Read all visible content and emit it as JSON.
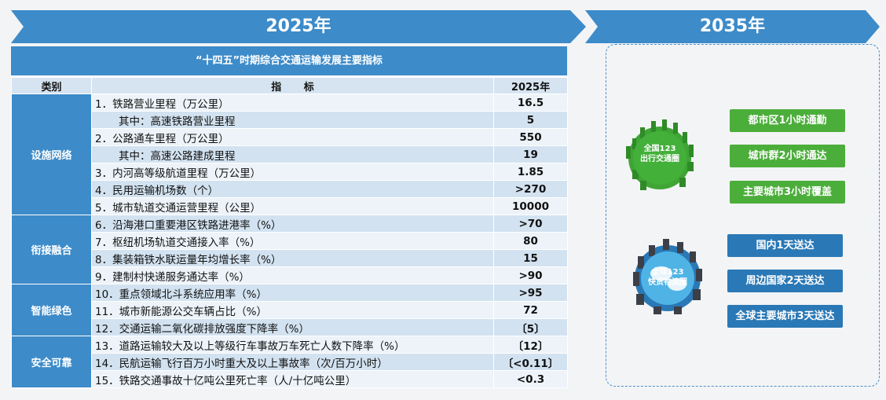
{
  "banners": {
    "left": "2025年",
    "right": "2035年"
  },
  "table": {
    "title": "“十四五”时期综合交通运输发展主要指标",
    "headers": {
      "category": "类别",
      "indicator": "指 标",
      "year": "2025年"
    },
    "categories": [
      "设施网络",
      "衔接融合",
      "智能绿色",
      "安全可靠"
    ],
    "rows": [
      {
        "indicator": "1．铁路营业里程（万公里）",
        "value": "16.5"
      },
      {
        "indicator": "其中：高速铁路营业里程",
        "value": "5"
      },
      {
        "indicator": "2．公路通车里程（万公里）",
        "value": "550"
      },
      {
        "indicator": "其中：高速公路建成里程",
        "value": "19"
      },
      {
        "indicator": "3．内河高等级航道里程（万公里）",
        "value": "1.85"
      },
      {
        "indicator": "4．民用运输机场数（个）",
        "value": ">270"
      },
      {
        "indicator": "5．城市轨道交通运营里程（公里）",
        "value": "10000"
      },
      {
        "indicator": "6．沿海港口重要港区铁路进港率（%）",
        "value": ">70"
      },
      {
        "indicator": "7．枢纽机场轨道交通接入率（%）",
        "value": "80"
      },
      {
        "indicator": "8．集装箱铁水联运量年均增长率（%）",
        "value": "15"
      },
      {
        "indicator": "9．建制村快递服务通达率（%）",
        "value": ">90"
      },
      {
        "indicator": "10．重点领域北斗系统应用率（%）",
        "value": ">95"
      },
      {
        "indicator": "11．城市新能源公交车辆占比（%）",
        "value": "72"
      },
      {
        "indicator": "12．交通运输二氧化碳排放强度下降率（%）",
        "value": "〔5〕"
      },
      {
        "indicator": "13．道路运输较大及以上等级行车事故万车死亡人数下降率（%）",
        "value": "〔12〕"
      },
      {
        "indicator": "14．民航运输飞行百万小时重大及以上事故率（次/百万小时）",
        "value": "〔<0.11〕"
      },
      {
        "indicator": "15．铁路交通事故十亿吨公里死亡率（人/十亿吨公里）",
        "value": "<0.3"
      }
    ]
  },
  "circles": {
    "passenger": {
      "label": "全国123出行交通圈",
      "color": "#3fa535"
    },
    "freight": {
      "label": "全球123快货物流圈",
      "color": "#2a78b6"
    }
  },
  "targets": {
    "passenger": [
      "都市区1小时通勤",
      "城市群2小时通达",
      "主要城市3小时覆盖"
    ],
    "freight": [
      "国内1天送达",
      "周边国家2天送达",
      "全球主要城市3天送达"
    ]
  }
}
